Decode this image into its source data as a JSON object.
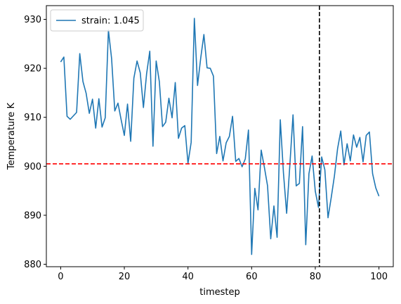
{
  "chart_data": {
    "type": "line",
    "title": "",
    "xlabel": "timestep",
    "ylabel": "Temperature K",
    "xlim": [
      -4.5,
      104.5
    ],
    "ylim": [
      879.5,
      932.8
    ],
    "xticks": [
      0,
      20,
      40,
      60,
      80,
      100
    ],
    "yticks": [
      880,
      890,
      900,
      910,
      920,
      930
    ],
    "grid": false,
    "legend": {
      "position": "top-left"
    },
    "series": [
      {
        "name": "strain: 1.045",
        "color": "#1f77b4",
        "x": [
          0,
          1,
          2,
          3,
          4,
          5,
          6,
          7,
          8,
          9,
          10,
          11,
          12,
          13,
          14,
          15,
          16,
          17,
          18,
          19,
          20,
          21,
          22,
          23,
          24,
          25,
          26,
          27,
          28,
          29,
          30,
          31,
          32,
          33,
          34,
          35,
          36,
          37,
          38,
          39,
          40,
          41,
          42,
          43,
          44,
          45,
          46,
          47,
          48,
          49,
          50,
          51,
          52,
          53,
          54,
          55,
          56,
          57,
          58,
          59,
          60,
          61,
          62,
          63,
          64,
          65,
          66,
          67,
          68,
          69,
          70,
          71,
          72,
          73,
          74,
          75,
          76,
          77,
          78,
          79,
          80,
          81,
          82,
          83,
          84,
          85,
          86,
          87,
          88,
          89,
          90,
          91,
          92,
          93,
          94,
          95,
          96,
          97,
          98,
          99,
          100
        ],
        "y": [
          921.3,
          922.3,
          910.2,
          909.6,
          910.3,
          911.0,
          923.0,
          917.3,
          914.9,
          910.8,
          913.7,
          907.8,
          913.8,
          908.0,
          909.9,
          927.8,
          922.0,
          911.3,
          912.9,
          909.5,
          906.3,
          912.7,
          905.1,
          918.0,
          921.5,
          919.1,
          912.0,
          918.9,
          923.5,
          904.1,
          921.5,
          917.3,
          908.1,
          909.0,
          913.9,
          909.9,
          917.1,
          905.7,
          907.8,
          908.3,
          900.6,
          904.9,
          930.2,
          916.5,
          922.1,
          926.9,
          920.1,
          920.0,
          918.4,
          902.6,
          906.1,
          901.1,
          904.8,
          906.1,
          910.2,
          901.0,
          901.6,
          899.9,
          901.5,
          907.4,
          882.0,
          895.5,
          891.1,
          903.3,
          899.8,
          896.0,
          885.2,
          891.9,
          885.5,
          909.5,
          898.6,
          890.4,
          900.2,
          910.5,
          896.0,
          896.5,
          908.1,
          884.0,
          898.5,
          902.1,
          894.9,
          891.6,
          901.9,
          899.3,
          889.5,
          893.6,
          898.0,
          903.6,
          907.2,
          900.3,
          904.6,
          901.1,
          906.4,
          903.9,
          905.9,
          900.9,
          906.3,
          907.0,
          898.5,
          895.6,
          893.9
        ]
      }
    ],
    "reference_lines": [
      {
        "orientation": "horizontal",
        "value": 900.5,
        "color": "#ff0000",
        "style": "dashed"
      },
      {
        "orientation": "vertical",
        "value": 81.3,
        "color": "#000000",
        "style": "dashed"
      }
    ]
  }
}
